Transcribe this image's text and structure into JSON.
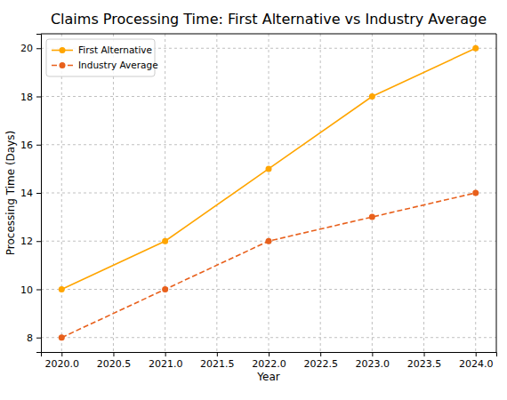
{
  "chart_data": {
    "type": "line",
    "title": "Claims Processing Time: First Alternative vs Industry Average",
    "x_label": "Year",
    "y_label": "Processing Time (Days)",
    "x": [
      2020,
      2021,
      2022,
      2023,
      2024
    ],
    "series": [
      {
        "name": "First Alternative",
        "color": "#ffa500",
        "marker": "circle",
        "line_style": "solid",
        "values": [
          10,
          12,
          15,
          18,
          20
        ]
      },
      {
        "name": "Industry Average",
        "color": "#e8601c",
        "marker": "circle",
        "line_style": "dashed",
        "values": [
          8,
          10,
          12,
          13,
          14
        ]
      }
    ],
    "xlim": [
      2019.8,
      2024.2
    ],
    "xticks": [
      {
        "value": 2020,
        "label": "2020.0"
      },
      {
        "value": 2020.5,
        "label": "2020.5"
      },
      {
        "value": 2021,
        "label": "2021.0"
      },
      {
        "value": 2021.5,
        "label": "2021.5"
      },
      {
        "value": 2022,
        "label": "2022.0"
      },
      {
        "value": 2022.5,
        "label": "2022.5"
      },
      {
        "value": 2023,
        "label": "2023.0"
      },
      {
        "value": 2023.5,
        "label": "2023.5"
      },
      {
        "value": 2024,
        "label": "2024.0"
      }
    ],
    "ylim": [
      7.4,
      20.6
    ],
    "yticks": [
      8,
      10,
      12,
      14,
      16,
      18,
      20
    ],
    "grid": true,
    "legend": "upper left"
  }
}
